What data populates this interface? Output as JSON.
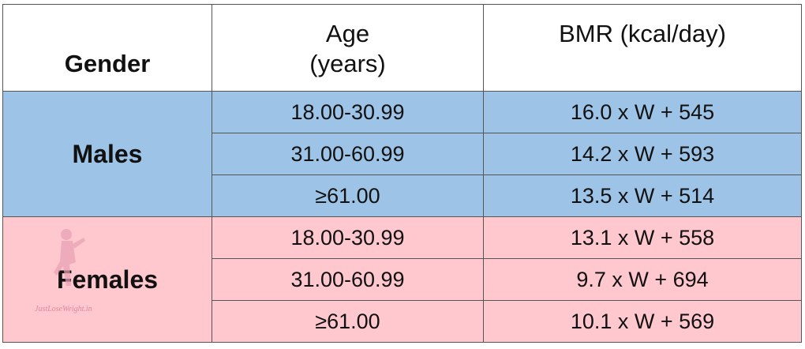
{
  "table": {
    "header": {
      "gender": "Gender",
      "age": [
        "Age",
        "(years)"
      ],
      "bmr": "BMR (kcal/day)"
    },
    "groups": [
      {
        "gender": "Males",
        "rows": [
          [
            "18.00-30.99",
            "16.0 x W + 545"
          ],
          [
            "31.00-60.99",
            "14.2 x W + 593"
          ],
          [
            "≥61.00",
            "13.5 x W + 514"
          ]
        ]
      },
      {
        "gender": "Females",
        "rows": [
          [
            "18.00-30.99",
            "13.1 x W + 558"
          ],
          [
            "31.00-60.99",
            "9.7 x W + 694"
          ],
          [
            "≥61.00",
            "10.1 x W + 569"
          ]
        ]
      }
    ],
    "watermark": "JustLoseWeight.in"
  }
}
